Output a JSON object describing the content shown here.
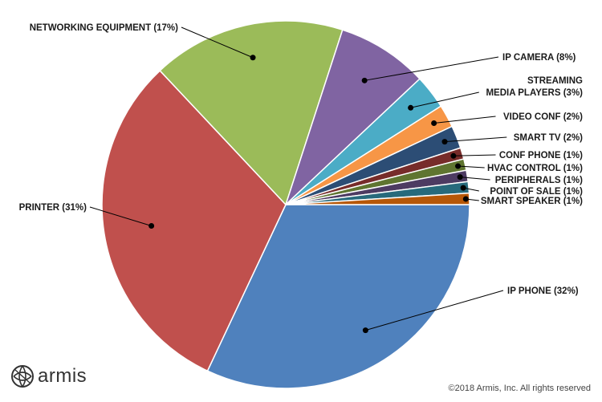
{
  "chart_data": {
    "type": "pie",
    "title": "",
    "slices": [
      {
        "label": "IP PHONE (32%)",
        "value": 32,
        "color": "#4f81bd"
      },
      {
        "label": "PRINTER (31%)",
        "value": 31,
        "color": "#c0504d"
      },
      {
        "label": "NETWORKING EQUIPMENT (17%)",
        "value": 17,
        "color": "#9bbb59"
      },
      {
        "label": "IP CAMERA (8%)",
        "value": 8,
        "color": "#8064a2"
      },
      {
        "label": [
          "STREAMING",
          "MEDIA PLAYERS (3%)"
        ],
        "value": 3,
        "color": "#4bacc6"
      },
      {
        "label": "VIDEO CONF (2%)",
        "value": 2,
        "color": "#f79646"
      },
      {
        "label": "SMART TV (2%)",
        "value": 2,
        "color": "#2c4d75"
      },
      {
        "label": "CONF PHONE (1%)",
        "value": 1,
        "color": "#772c2a"
      },
      {
        "label": "HVAC CONTROL (1%)",
        "value": 1,
        "color": "#5f7530"
      },
      {
        "label": "PERIPHERALS (1%)",
        "value": 1,
        "color": "#4d3b62"
      },
      {
        "label": "POINT OF SALE (1%)",
        "value": 1,
        "color": "#276a7c"
      },
      {
        "label": "SMART SPEAKER (1%)",
        "value": 1,
        "color": "#b65708"
      }
    ]
  },
  "brand": {
    "name": "armis",
    "logo_icon": "armis-globe-icon",
    "color": "#333333"
  },
  "footer": {
    "copyright": "©2018 Armis, Inc. All rights reserved"
  }
}
